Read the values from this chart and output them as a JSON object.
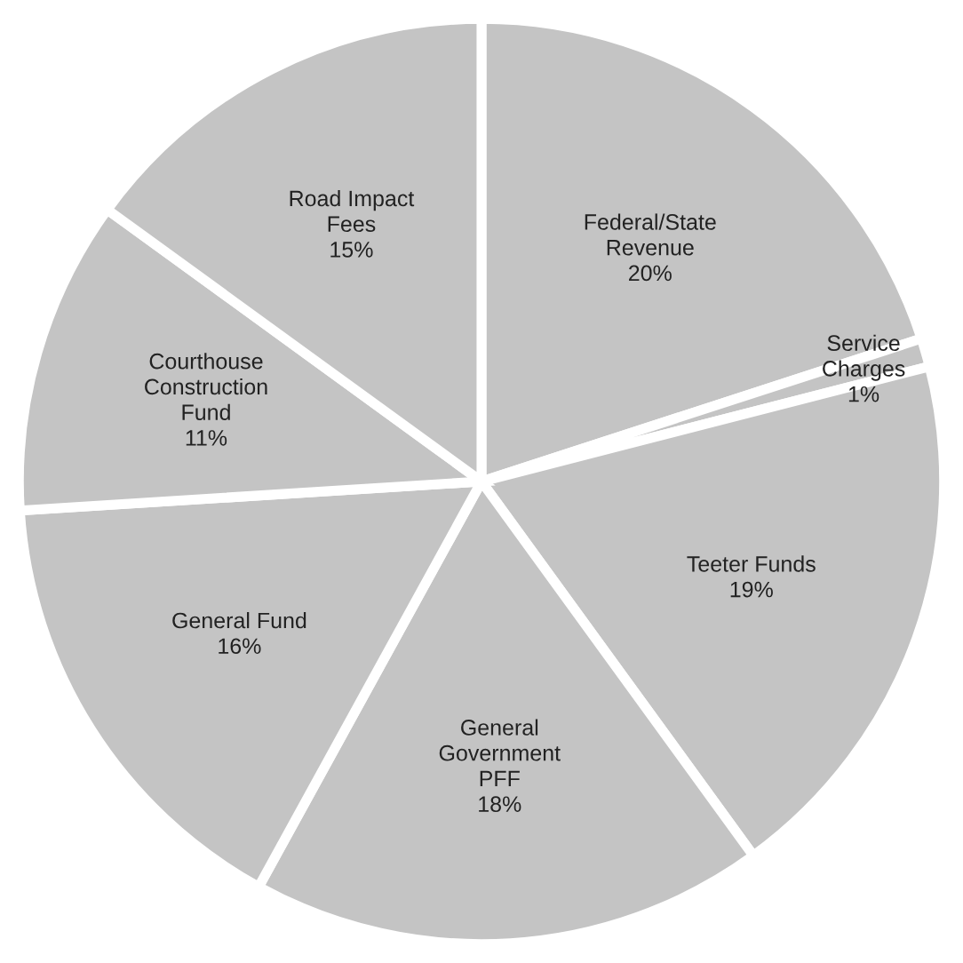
{
  "chart_data": {
    "type": "pie",
    "categories": [
      "Federal/State\nRevenue",
      "Service\nCharges",
      "Teeter Funds",
      "General\nGovernment\nPFF",
      "General Fund",
      "Courthouse\nConstruction\nFund",
      "Road Impact\nFees"
    ],
    "values": [
      20,
      1,
      19,
      18,
      16,
      11,
      15
    ],
    "value_labels": [
      "20%",
      "1%",
      "19%",
      "18%",
      "16%",
      "11%",
      "15%"
    ],
    "colors": [
      "#c4c4c4",
      "#c4c4c4",
      "#c4c4c4",
      "#c4c4c4",
      "#c4c4c4",
      "#c4c4c4",
      "#c4c4c4"
    ]
  }
}
